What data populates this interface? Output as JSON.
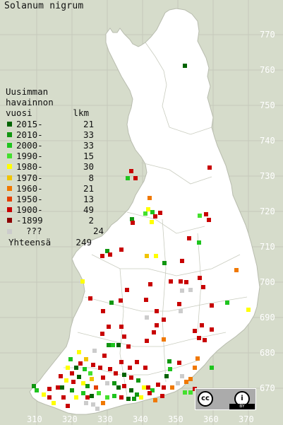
{
  "title": "Solanum nigrum",
  "legend": {
    "heading": [
      "Uusimman",
      "havainnon"
    ],
    "col_period": "vuosi",
    "col_count": "lkm",
    "items": [
      {
        "period": "2015-",
        "count": "21",
        "color": "#006400"
      },
      {
        "period": "2010-",
        "count": "33",
        "color": "#119611"
      },
      {
        "period": "2000-",
        "count": "33",
        "color": "#1ec41e"
      },
      {
        "period": "1990-",
        "count": "15",
        "color": "#44e02e"
      },
      {
        "period": "1980-",
        "count": "30",
        "color": "#ffff00"
      },
      {
        "period": "1970-",
        "count": "8",
        "color": "#f0c400"
      },
      {
        "period": "1960-",
        "count": "21",
        "color": "#f07800"
      },
      {
        "period": "1950-",
        "count": "13",
        "color": "#e44000"
      },
      {
        "period": "1900-",
        "count": "49",
        "color": "#c80000"
      },
      {
        "period": "-1899",
        "count": "2",
        "color": "#8c0000"
      },
      {
        "period": "???",
        "count": "24",
        "color": "#cccccc"
      }
    ],
    "total_label": "Yhteensä",
    "total_value": "249"
  },
  "grid": {
    "northings": [
      "770",
      "760",
      "750",
      "740",
      "730",
      "720",
      "710",
      "700",
      "690",
      "680",
      "670"
    ],
    "eastings": [
      "310",
      "320",
      "330",
      "340",
      "350",
      "360",
      "370"
    ]
  },
  "license": {
    "cc": "cc",
    "by_symbol": "i",
    "by": "BY"
  },
  "colors": {
    "background": "#d6dccb",
    "land": "#ffffff",
    "grid": "#c5c9bb",
    "border": "#b4b8aa"
  }
}
